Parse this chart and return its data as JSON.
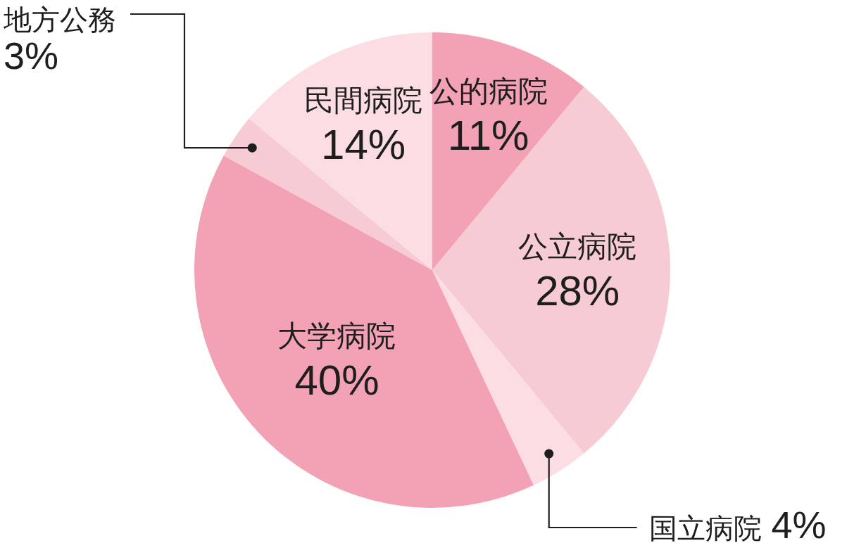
{
  "chart_data": {
    "type": "pie",
    "categories": [
      "公的病院",
      "公立病院",
      "国立病院",
      "大学病院",
      "地方公務",
      "民間病院"
    ],
    "values": [
      11,
      28,
      4,
      40,
      3,
      14
    ],
    "colors": [
      "#f2a2b4",
      "#f6cbd3",
      "#fbdde3",
      "#f2a2b4",
      "#f6cbd3",
      "#fbdde3"
    ],
    "value_labels": [
      "11%",
      "28%",
      "4%",
      "40%",
      "3%",
      "14%"
    ]
  }
}
